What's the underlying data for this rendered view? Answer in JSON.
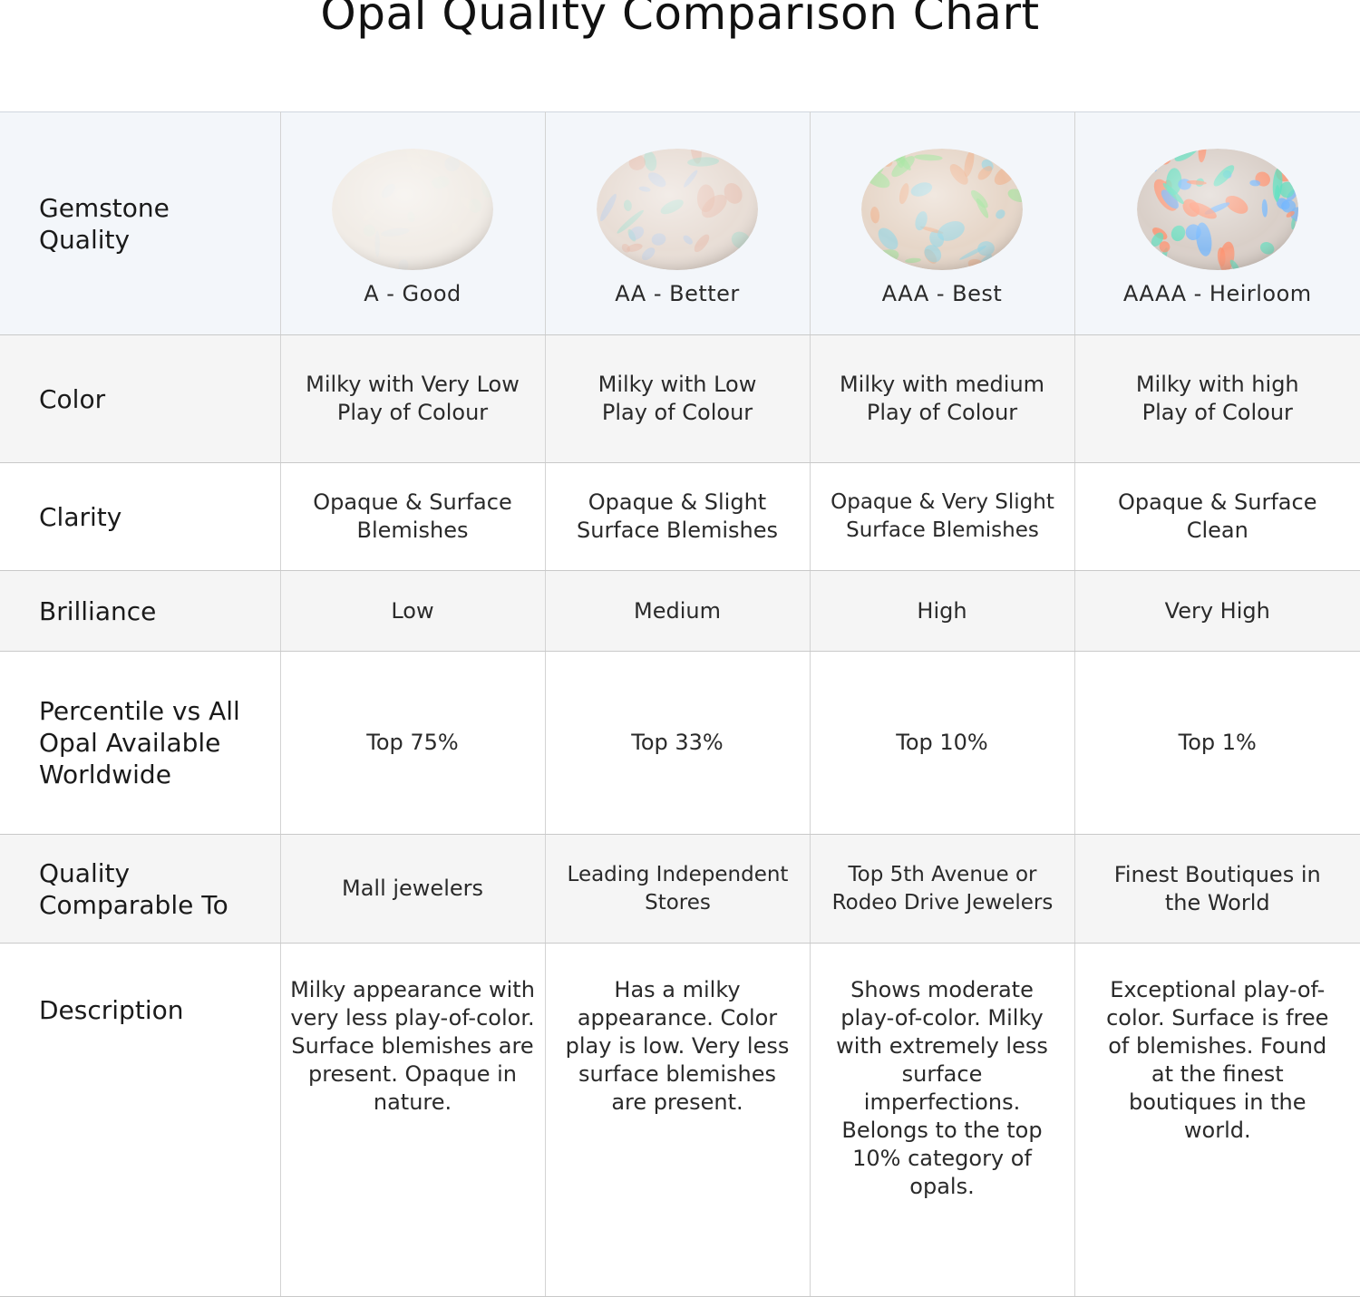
{
  "title": "Opal Quality Comparison Chart",
  "rows": {
    "gemstone_quality": {
      "label": "Gemstone Quality",
      "grades": [
        "A - Good",
        "AA - Better",
        "AAA - Best",
        "AAAA - Heirloom"
      ]
    },
    "color": {
      "label": "Color",
      "values": [
        "Milky with Very Low Play of Colour",
        "Milky with Low Play of Colour",
        "Milky with medium Play of Colour",
        "Milky with high Play of Colour"
      ]
    },
    "clarity": {
      "label": "Clarity",
      "values": [
        "Opaque & Surface Blemishes",
        "Opaque & Slight Surface Blemishes",
        "Opaque & Very Slight Surface Blemishes",
        "Opaque & Surface Clean"
      ]
    },
    "brilliance": {
      "label": "Brilliance",
      "values": [
        "Low",
        "Medium",
        "High",
        "Very High"
      ]
    },
    "percentile": {
      "label": "Percentile vs All Opal Available Worldwide",
      "values": [
        "Top 75%",
        "Top 33%",
        "Top 10%",
        "Top 1%"
      ]
    },
    "comparable": {
      "label": "Quality Comparable To",
      "values": [
        "Mall jewelers",
        "Leading Independent Stores",
        "Top 5th Avenue or Rodeo Drive Jewelers",
        "Finest Boutiques in the World"
      ]
    },
    "description": {
      "label": "Description",
      "values": [
        "Milky appearance with very less play-of-color. Surface blemishes are present. Opaque in nature.",
        "Has a milky appearance. Color play is low. Very less surface blemishes are present.",
        "Shows moderate play-of-color. Milky with extremely less surface imperfections. Belongs to the top 10% category of opals.",
        "Exceptional play-of-color. Surface is free of blemishes. Found at the finest boutiques in the world."
      ]
    }
  },
  "gem_images": [
    {
      "icon": "opal-gem-a-icon",
      "base": "#f1ece6",
      "fleck": [
        "#e2efe6",
        "#f6efe8",
        "#dfe9f0"
      ]
    },
    {
      "icon": "opal-gem-aa-icon",
      "base": "#e8ddd5",
      "fleck": [
        "#e9b9a6",
        "#9fe0d0",
        "#b9d0f0"
      ]
    },
    {
      "icon": "opal-gem-aaa-icon",
      "base": "#e6d6c8",
      "fleck": [
        "#9ee59a",
        "#f0b08c",
        "#8fd6e8"
      ]
    },
    {
      "icon": "opal-gem-aaaa-icon",
      "base": "#d9cfc8",
      "fleck": [
        "#ff8f6b",
        "#5fe0c0",
        "#6fb6ff"
      ]
    }
  ]
}
